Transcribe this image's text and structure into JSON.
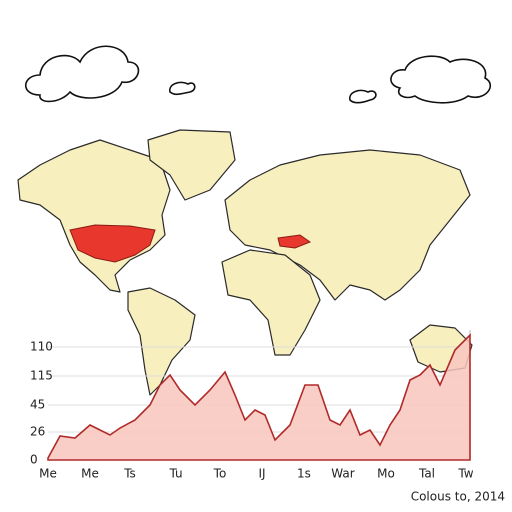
{
  "y_labels": [
    "110",
    "115",
    "45",
    "26",
    "0"
  ],
  "x_labels": [
    "Me",
    "Me",
    "Ts",
    "Tu",
    "To",
    "IJ",
    "1s",
    "War",
    "Mo",
    "Tal",
    "Tw"
  ],
  "caption": "Colous to, 2014"
}
